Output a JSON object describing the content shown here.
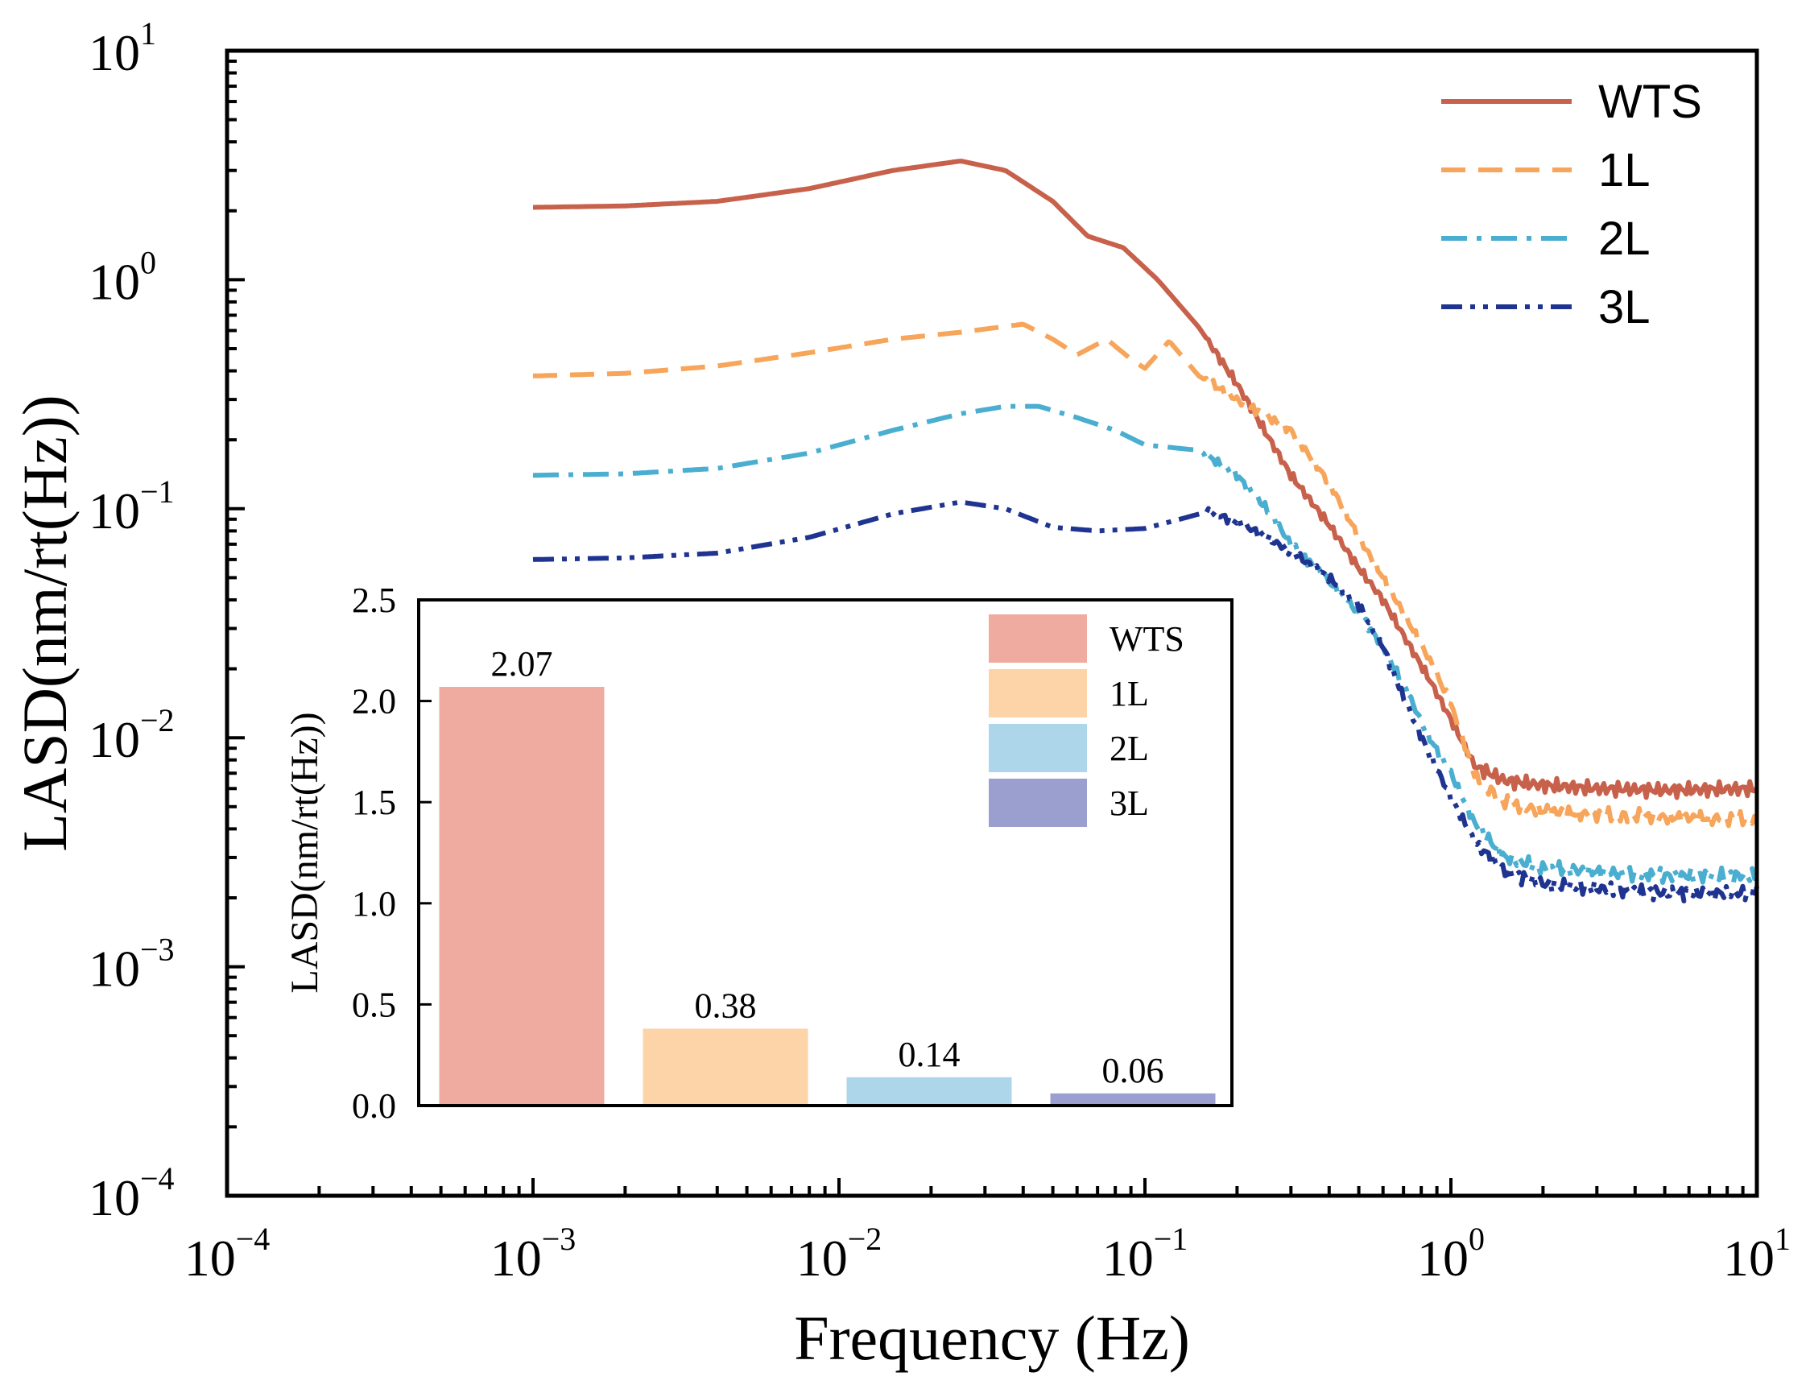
{
  "chart_data": [
    {
      "type": "line",
      "xlabel": "Frequency (Hz)",
      "ylabel": "LASD(nm/rt(Hz))",
      "xscale": "log",
      "yscale": "log",
      "xlim": [
        0.0001,
        10
      ],
      "ylim": [
        0.0001,
        10
      ],
      "x_ticks": [
        {
          "value": 0.0001,
          "base": "10",
          "exp": "−4"
        },
        {
          "value": 0.001,
          "base": "10",
          "exp": "−3"
        },
        {
          "value": 0.01,
          "base": "10",
          "exp": "−2"
        },
        {
          "value": 0.1,
          "base": "10",
          "exp": "−1"
        },
        {
          "value": 1,
          "base": "10",
          "exp": "0"
        },
        {
          "value": 10,
          "base": "10",
          "exp": "1"
        }
      ],
      "y_ticks": [
        {
          "value": 0.0001,
          "base": "10",
          "exp": "−4"
        },
        {
          "value": 0.001,
          "base": "10",
          "exp": "−3"
        },
        {
          "value": 0.01,
          "base": "10",
          "exp": "−2"
        },
        {
          "value": 0.1,
          "base": "10",
          "exp": "−1"
        },
        {
          "value": 1,
          "base": "10",
          "exp": "0"
        },
        {
          "value": 10,
          "base": "10",
          "exp": "1"
        }
      ],
      "legend_position": "top-right",
      "series": [
        {
          "name": "WTS",
          "color": "#c8614b",
          "dash": "solid",
          "x": [
            0.001,
            0.002,
            0.004,
            0.008,
            0.015,
            0.025,
            0.035,
            0.05,
            0.065,
            0.085,
            0.11,
            0.15,
            0.2,
            0.3,
            0.4,
            0.5,
            0.6,
            0.7,
            0.85,
            1.0,
            1.2,
            1.5,
            2,
            3,
            5,
            10
          ],
          "y": [
            2.07,
            2.1,
            2.2,
            2.5,
            3.0,
            3.3,
            3.0,
            2.2,
            1.55,
            1.38,
            1.0,
            0.62,
            0.35,
            0.14,
            0.085,
            0.055,
            0.04,
            0.028,
            0.018,
            0.012,
            0.0075,
            0.0065,
            0.0062,
            0.006,
            0.0059,
            0.006
          ]
        },
        {
          "name": "1L",
          "color": "#f7a55a",
          "dash": "dashed",
          "x": [
            0.001,
            0.002,
            0.004,
            0.008,
            0.015,
            0.025,
            0.04,
            0.05,
            0.06,
            0.075,
            0.09,
            0.1,
            0.12,
            0.15,
            0.2,
            0.3,
            0.4,
            0.5,
            0.6,
            0.7,
            0.85,
            1.0,
            1.2,
            1.5,
            2,
            3,
            5,
            10
          ],
          "y": [
            0.38,
            0.39,
            0.42,
            0.48,
            0.55,
            0.59,
            0.64,
            0.55,
            0.47,
            0.55,
            0.45,
            0.41,
            0.54,
            0.38,
            0.3,
            0.22,
            0.13,
            0.075,
            0.05,
            0.035,
            0.022,
            0.014,
            0.0068,
            0.0052,
            0.0048,
            0.0046,
            0.0045,
            0.0044
          ]
        },
        {
          "name": "2L",
          "color": "#4aaed0",
          "dash": "dashdot",
          "x": [
            0.001,
            0.002,
            0.004,
            0.008,
            0.015,
            0.025,
            0.035,
            0.045,
            0.06,
            0.08,
            0.1,
            0.15,
            0.2,
            0.25,
            0.3,
            0.4,
            0.5,
            0.6,
            0.7,
            0.85,
            1.0,
            1.2,
            1.5,
            2,
            3,
            5,
            10
          ],
          "y": [
            0.14,
            0.142,
            0.15,
            0.175,
            0.22,
            0.26,
            0.28,
            0.28,
            0.25,
            0.22,
            0.19,
            0.18,
            0.14,
            0.1,
            0.07,
            0.048,
            0.035,
            0.025,
            0.017,
            0.01,
            0.007,
            0.0042,
            0.003,
            0.0027,
            0.0026,
            0.0025,
            0.0025
          ]
        },
        {
          "name": "3L",
          "color": "#1f3490",
          "dash": "dashdotdot",
          "x": [
            0.001,
            0.002,
            0.004,
            0.008,
            0.015,
            0.025,
            0.035,
            0.05,
            0.07,
            0.1,
            0.13,
            0.16,
            0.2,
            0.25,
            0.3,
            0.4,
            0.5,
            0.6,
            0.7,
            0.85,
            1.0,
            1.2,
            1.5,
            2,
            3,
            5,
            10
          ],
          "y": [
            0.06,
            0.061,
            0.064,
            0.075,
            0.095,
            0.107,
            0.1,
            0.083,
            0.08,
            0.082,
            0.09,
            0.097,
            0.088,
            0.075,
            0.065,
            0.05,
            0.038,
            0.025,
            0.015,
            0.0085,
            0.0055,
            0.0035,
            0.0026,
            0.0023,
            0.0022,
            0.0021,
            0.0021
          ]
        }
      ]
    },
    {
      "type": "bar",
      "xlabel": "",
      "ylabel": "LASD(nm/rt(Hz))",
      "ylim": [
        0,
        2.5
      ],
      "y_tick_values": [
        0.0,
        0.5,
        1.0,
        1.5,
        2.0,
        2.5
      ],
      "y_tick_labels": [
        "0.0",
        "0.5",
        "1.0",
        "1.5",
        "2.0",
        "2.5"
      ],
      "categories": [
        "WTS",
        "1L",
        "2L",
        "3L"
      ],
      "values": [
        2.07,
        0.38,
        0.14,
        0.06
      ],
      "value_labels": [
        "2.07",
        "0.38",
        "0.14",
        "0.06"
      ],
      "colors": [
        "#f0aba0",
        "#fdd3a8",
        "#aed6ea",
        "#9b9fd0"
      ],
      "legend_position": "top-right"
    }
  ]
}
